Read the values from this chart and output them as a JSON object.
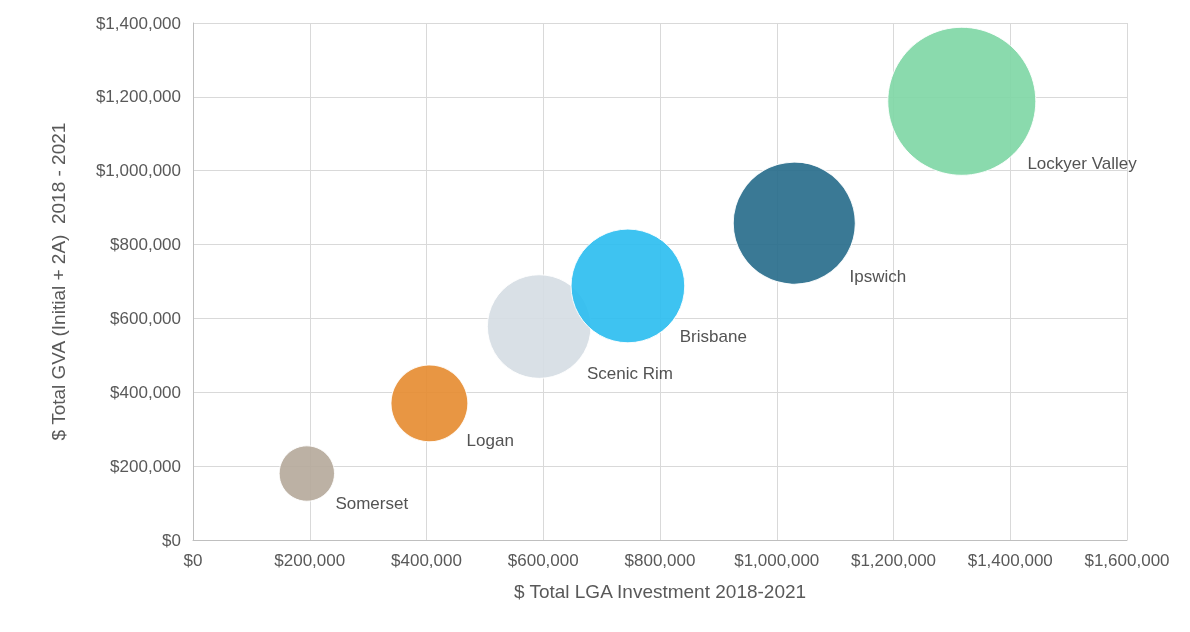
{
  "chart_data": {
    "type": "bubble",
    "xlabel": "$ Total LGA Investment 2018-2021",
    "ylabel": "$ Total GVA (Initial + 2A)  2018 - 2021",
    "xlim": [
      0,
      1600000
    ],
    "ylim": [
      0,
      1400000
    ],
    "xticks": [
      {
        "value": 0,
        "label": "$0"
      },
      {
        "value": 200000,
        "label": "$200,000"
      },
      {
        "value": 400000,
        "label": "$400,000"
      },
      {
        "value": 600000,
        "label": "$600,000"
      },
      {
        "value": 800000,
        "label": "$800,000"
      },
      {
        "value": 1000000,
        "label": "$1,000,000"
      },
      {
        "value": 1200000,
        "label": "$1,200,000"
      },
      {
        "value": 1400000,
        "label": "$1,400,000"
      },
      {
        "value": 1600000,
        "label": "$1,600,000"
      }
    ],
    "yticks": [
      {
        "value": 0,
        "label": "$0"
      },
      {
        "value": 200000,
        "label": "$200,000"
      },
      {
        "value": 400000,
        "label": "$400,000"
      },
      {
        "value": 600000,
        "label": "$600,000"
      },
      {
        "value": 800000,
        "label": "$800,000"
      },
      {
        "value": 1000000,
        "label": "$1,000,000"
      },
      {
        "value": 1200000,
        "label": "$1,200,000"
      },
      {
        "value": 1400000,
        "label": "$1,400,000"
      }
    ],
    "grid": true,
    "legend": false,
    "series": [
      {
        "name": "Somerset",
        "color": "#b5a89a",
        "x": [
          195000
        ],
        "values": [
          180000
        ],
        "sizes": [
          0.14
        ]
      },
      {
        "name": "Logan",
        "color": "#e58b2f",
        "x": [
          405000
        ],
        "values": [
          370000
        ],
        "sizes": [
          0.27
        ]
      },
      {
        "name": "Scenic Rim",
        "color": "#d5dde3",
        "x": [
          593000
        ],
        "values": [
          578000
        ],
        "sizes": [
          0.49
        ]
      },
      {
        "name": "Brisbane",
        "color": "#29bdf0",
        "x": [
          745000
        ],
        "values": [
          688000
        ],
        "sizes": [
          0.59
        ]
      },
      {
        "name": "Ipswich",
        "color": "#256a89",
        "x": [
          1030000
        ],
        "values": [
          858000
        ],
        "sizes": [
          0.68
        ]
      },
      {
        "name": "Lockyer Valley",
        "color": "#7dd6a4",
        "x": [
          1317000
        ],
        "values": [
          1188000
        ],
        "sizes": [
          1
        ]
      }
    ]
  }
}
